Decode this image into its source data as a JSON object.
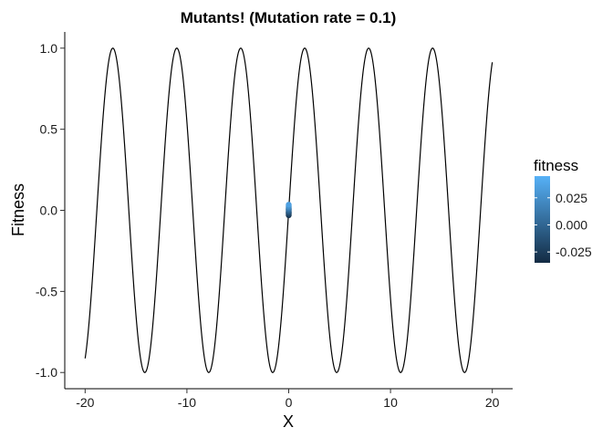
{
  "chart_data": {
    "type": "line",
    "title": "Mutants! (Mutation rate = 0.1)",
    "xlabel": "X",
    "ylabel": "Fitness",
    "xlim": [
      -22.0,
      22.0
    ],
    "ylim": [
      -1.1,
      1.1
    ],
    "x_ticks": [
      -20,
      -10,
      0,
      10,
      20
    ],
    "y_ticks": [
      -1.0,
      -0.5,
      0.0,
      0.5,
      1.0
    ],
    "x_tick_labels": [
      "-20",
      "-10",
      "0",
      "10",
      "20"
    ],
    "y_tick_labels": [
      "-1.0",
      "-0.5",
      "0.0",
      "0.5",
      "1.0"
    ],
    "grid": false,
    "line": {
      "color": "#000000",
      "function": "sin(x)",
      "x_range": [
        -20,
        20
      ],
      "samples": 1201
    },
    "points": {
      "x": [
        0.0,
        0.0,
        0.0,
        0.0,
        0.0,
        0.0,
        0.0,
        0.0,
        0.0,
        0.0,
        0.0,
        0.0,
        0.0
      ],
      "y": [
        -0.03,
        -0.025,
        -0.02,
        -0.015,
        -0.01,
        -0.005,
        0.0,
        0.005,
        0.01,
        0.015,
        0.02,
        0.025,
        0.035
      ],
      "color_variable": "fitness"
    },
    "legend": {
      "title": "fitness",
      "placement": "right",
      "type": "colorbar",
      "min": -0.035,
      "max": 0.045,
      "ticks": [
        0.025,
        0.0,
        -0.025
      ],
      "tick_labels": [
        "0.025",
        "0.000",
        "-0.025"
      ],
      "color_low": "#132b43",
      "color_high": "#56b1f7"
    }
  }
}
